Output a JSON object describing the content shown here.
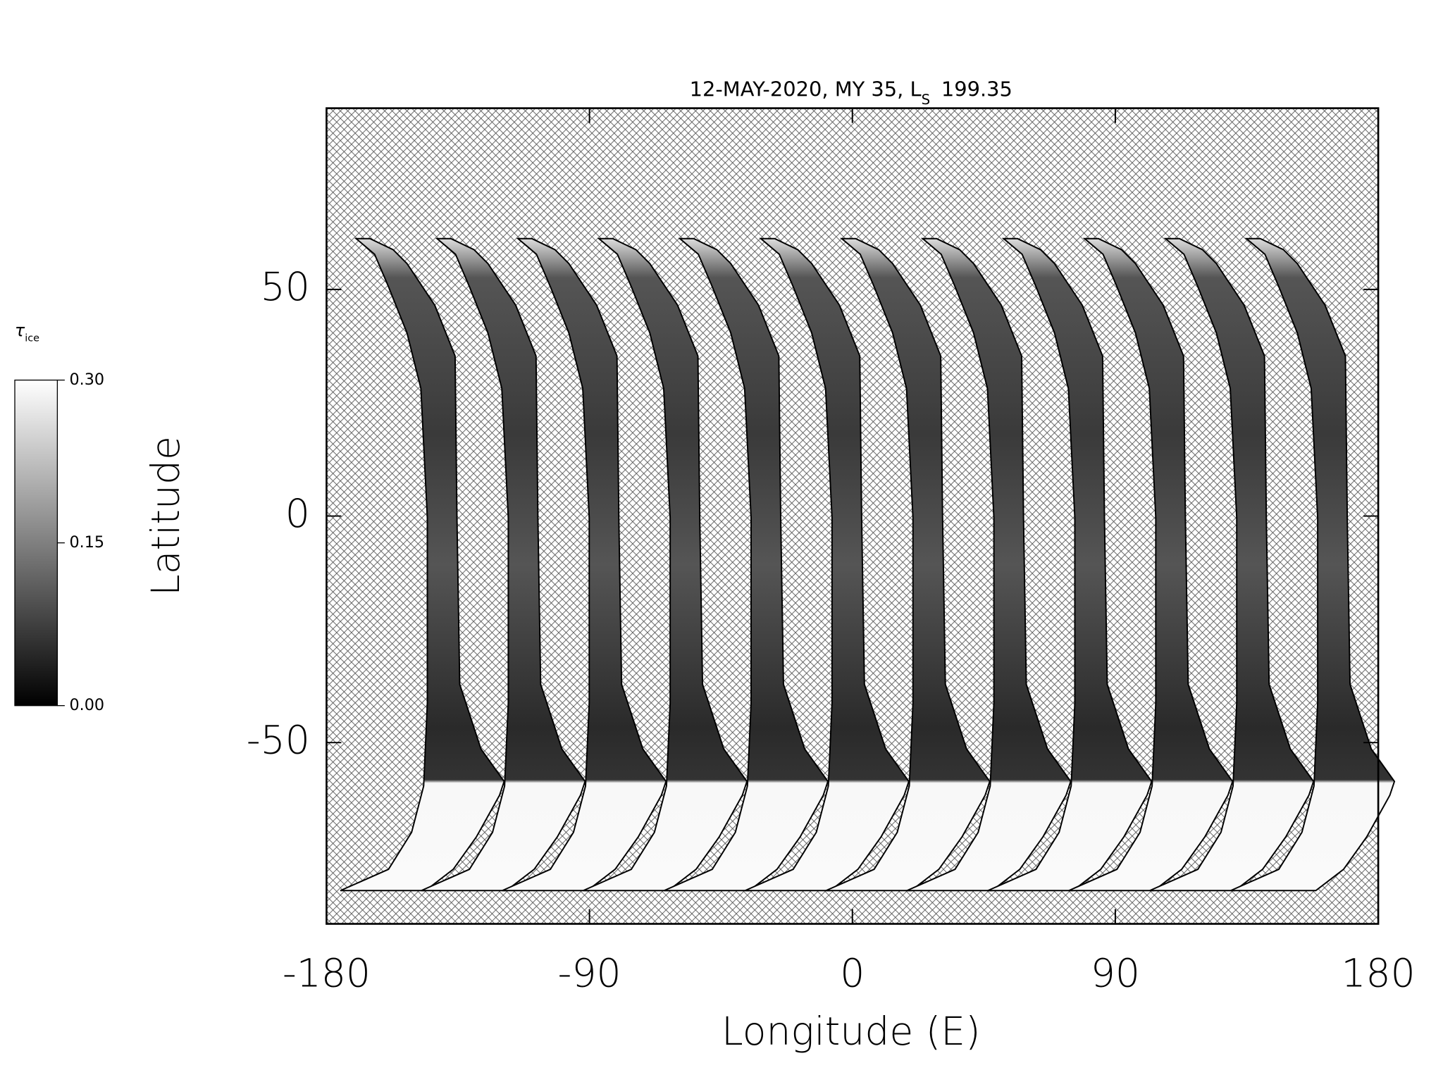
{
  "chart_data": {
    "type": "map",
    "title": {
      "prefix": "12-MAY-2020, MY 35,  L",
      "subscript": "S",
      "suffix": "199.35"
    },
    "xlabel": "Longitude (E)",
    "ylabel": "Latitude",
    "xlim": [
      -180,
      180
    ],
    "xticks": [
      -180,
      -90,
      0,
      90,
      180
    ],
    "ylim": [
      -90,
      90
    ],
    "yticks": [
      -50,
      0,
      50
    ],
    "colorbar": {
      "symbol": "τ",
      "subscript": "ice",
      "clim": [
        0,
        0.3
      ],
      "colors": [
        "#000000",
        "#ffffff"
      ],
      "ticks": [
        {
          "value": 0,
          "label": "0.00"
        },
        {
          "value": 0.15,
          "label": "0.15"
        },
        {
          "value": 0.3,
          "label": "0.30"
        }
      ]
    }
  }
}
